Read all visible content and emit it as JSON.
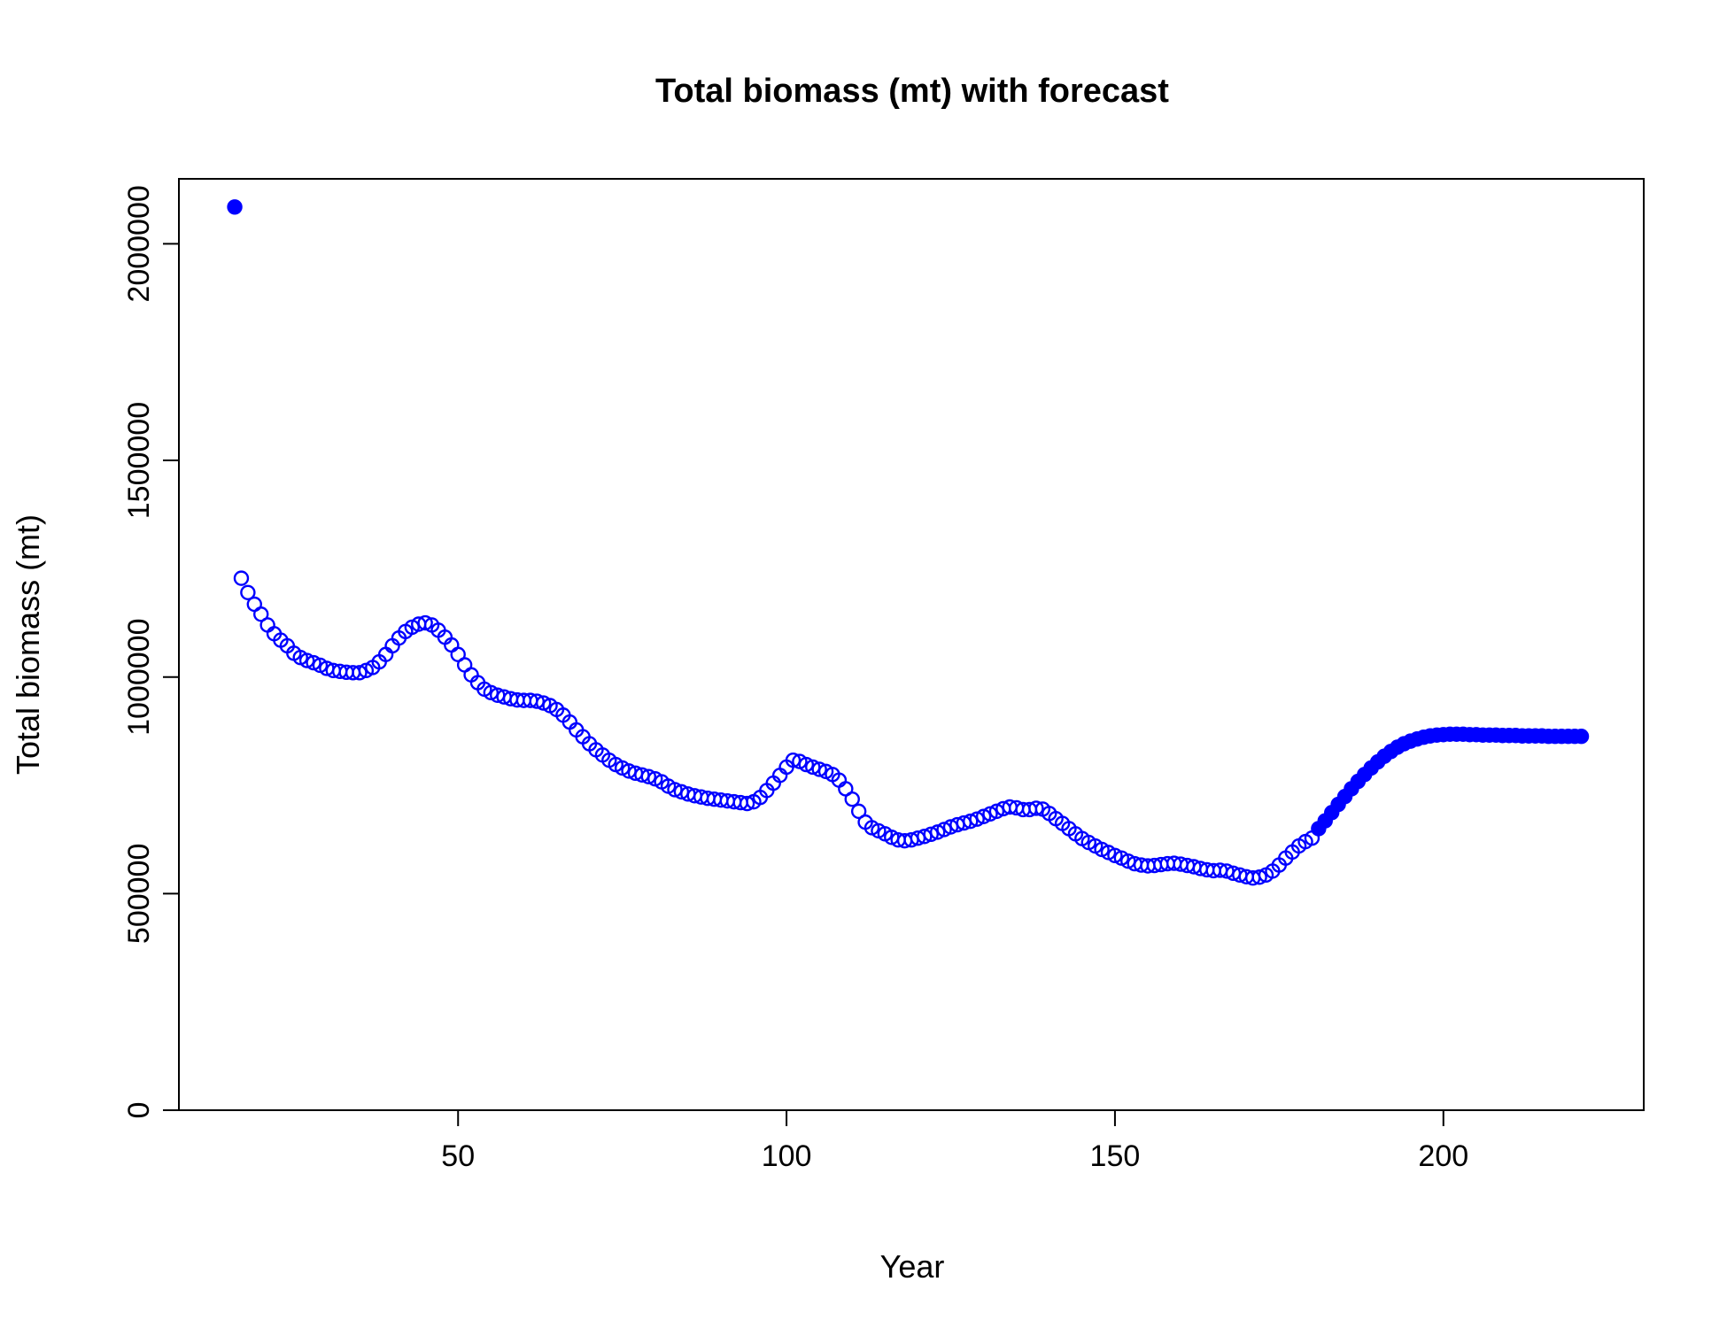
{
  "chart_data": {
    "type": "scatter",
    "title": "Total biomass (mt) with forecast",
    "xlabel": "Year",
    "ylabel": "Total biomass (mt)",
    "xlim": [
      7.5,
      230.5
    ],
    "ylim": [
      0,
      2150000
    ],
    "x_ticks": [
      50,
      100,
      150,
      200
    ],
    "y_ticks": [
      0,
      500000,
      1000000,
      1500000,
      2000000
    ],
    "x_tick_labels": [
      "50",
      "100",
      "150",
      "200"
    ],
    "y_tick_labels": [
      "0",
      "500000",
      "1000000",
      "1500000",
      "2000000"
    ],
    "color": "#0000ff",
    "grid": false,
    "legend": "none",
    "series": [
      {
        "marker": "filled-circle",
        "x": [
          16
        ],
        "y": [
          2085000
        ]
      },
      {
        "marker": "open-circle",
        "x": [
          17,
          18,
          19,
          20,
          21,
          22,
          23,
          24,
          25,
          26,
          27,
          28,
          29,
          30,
          31,
          32,
          33,
          34,
          35,
          36,
          37,
          38,
          39,
          40,
          41,
          42,
          43,
          44,
          45,
          46,
          47,
          48,
          49,
          50,
          51,
          52,
          53,
          54,
          55,
          56,
          57,
          58,
          59,
          60,
          61,
          62,
          63,
          64,
          65,
          66,
          67,
          68,
          69,
          70,
          71,
          72,
          73,
          74,
          75,
          76,
          77,
          78,
          79,
          80,
          81,
          82,
          83,
          84,
          85,
          86,
          87,
          88,
          89,
          90,
          91,
          92,
          93,
          94,
          95,
          96,
          97,
          98,
          99,
          100,
          101,
          102,
          103,
          104,
          105,
          106,
          107,
          108,
          109,
          110,
          111,
          112,
          113,
          114,
          115,
          116,
          117,
          118,
          119,
          120,
          121,
          122,
          123,
          124,
          125,
          126,
          127,
          128,
          129,
          130,
          131,
          132,
          133,
          134,
          135,
          136,
          137,
          138,
          139,
          140,
          141,
          142,
          143,
          144,
          145,
          146,
          147,
          148,
          149,
          150,
          151,
          152,
          153,
          154,
          155,
          156,
          157,
          158,
          159,
          160,
          161,
          162,
          163,
          164,
          165,
          166,
          167,
          168,
          169,
          170,
          171,
          172,
          173,
          174,
          175,
          176,
          177,
          178,
          179,
          180
        ],
        "y": [
          1228000,
          1195000,
          1168000,
          1145000,
          1120000,
          1100000,
          1085000,
          1072000,
          1055000,
          1045000,
          1038000,
          1033000,
          1027000,
          1020000,
          1015000,
          1013000,
          1011000,
          1010000,
          1010000,
          1015000,
          1022000,
          1035000,
          1052000,
          1072000,
          1090000,
          1105000,
          1115000,
          1122000,
          1125000,
          1120000,
          1108000,
          1092000,
          1074000,
          1052000,
          1028000,
          1005000,
          987000,
          972000,
          964000,
          958000,
          954000,
          950000,
          947000,
          946000,
          946000,
          944000,
          940000,
          934000,
          925000,
          912000,
          896000,
          878000,
          862000,
          846000,
          832000,
          820000,
          808000,
          798000,
          790000,
          783000,
          778000,
          774000,
          770000,
          765000,
          758000,
          748000,
          740000,
          735000,
          730000,
          726000,
          723000,
          720000,
          718000,
          716000,
          714000,
          712000,
          710000,
          708000,
          712000,
          722000,
          738000,
          755000,
          773000,
          792000,
          808000,
          805000,
          798000,
          792000,
          787000,
          782000,
          775000,
          762000,
          742000,
          718000,
          690000,
          665000,
          652000,
          645000,
          638000,
          630000,
          624000,
          622000,
          624000,
          628000,
          632000,
          637000,
          642000,
          648000,
          654000,
          659000,
          663000,
          667000,
          672000,
          678000,
          684000,
          690000,
          696000,
          700000,
          698000,
          694000,
          694000,
          697000,
          695000,
          685000,
          673000,
          662000,
          650000,
          638000,
          627000,
          618000,
          610000,
          602000,
          595000,
          588000,
          582000,
          575000,
          569000,
          566000,
          564000,
          565000,
          567000,
          569000,
          570000,
          568000,
          565000,
          562000,
          558000,
          555000,
          553000,
          554000,
          552000,
          547000,
          543000,
          539000,
          536000,
          538000,
          543000,
          552000,
          566000,
          582000,
          596000,
          610000,
          620000,
          628000
        ]
      },
      {
        "marker": "filled-circle",
        "x": [
          181,
          182,
          183,
          184,
          185,
          186,
          187,
          188,
          189,
          190,
          191,
          192,
          193,
          194,
          195,
          196,
          197,
          198,
          199,
          200,
          201,
          202,
          203,
          204,
          205,
          206,
          207,
          208,
          209,
          210,
          211,
          212,
          213,
          214,
          215,
          216,
          217,
          218,
          219,
          220,
          221
        ],
        "y": [
          650000,
          668000,
          687000,
          706000,
          724000,
          742000,
          759000,
          775000,
          790000,
          804000,
          817000,
          828000,
          838000,
          846000,
          852000,
          857000,
          861000,
          864000,
          866000,
          867000,
          868000,
          868000,
          868000,
          867000,
          867000,
          866000,
          866000,
          866000,
          865000,
          865000,
          865000,
          864000,
          864000,
          864000,
          864000,
          863000,
          863000,
          863000,
          863000,
          863000,
          863000
        ]
      }
    ]
  }
}
